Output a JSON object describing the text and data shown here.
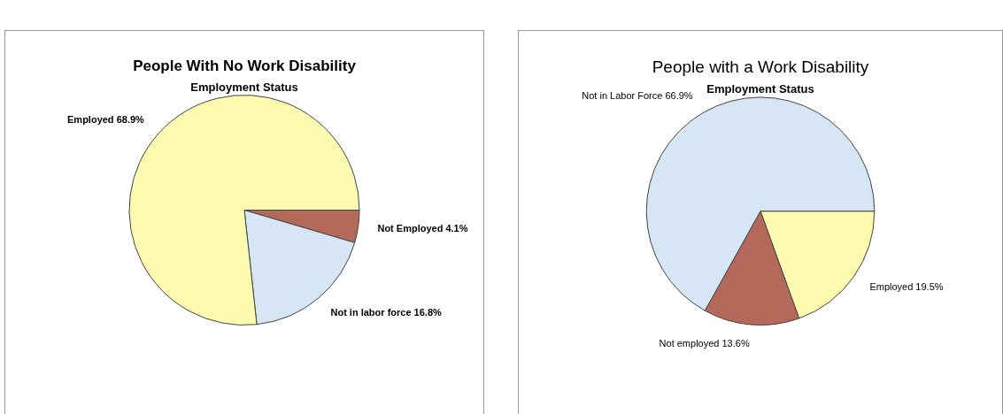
{
  "chart_data": [
    {
      "type": "pie",
      "title": "People With No Work Disability",
      "subtitle": "Employment Status",
      "categories": [
        "Not Employed",
        "Not in labor force",
        "Employed"
      ],
      "values": [
        4.1,
        16.8,
        68.9
      ],
      "value_labels": [
        "4.1%",
        "16.8%",
        "68.9%"
      ],
      "colors": [
        "#b5695a",
        "#d6e6f5",
        "#fdfbb0"
      ],
      "legend": false
    },
    {
      "type": "pie",
      "title": "People with a Work Disability",
      "subtitle": "Employment Status",
      "categories": [
        "Employed",
        "Not employed",
        "Not in Labor Force"
      ],
      "values": [
        19.5,
        13.6,
        66.9
      ],
      "value_labels": [
        "19.5%",
        "13.6%",
        "66.9%"
      ],
      "colors": [
        "#fdfbb0",
        "#b5695a",
        "#d6e6f5"
      ],
      "legend": false
    }
  ]
}
